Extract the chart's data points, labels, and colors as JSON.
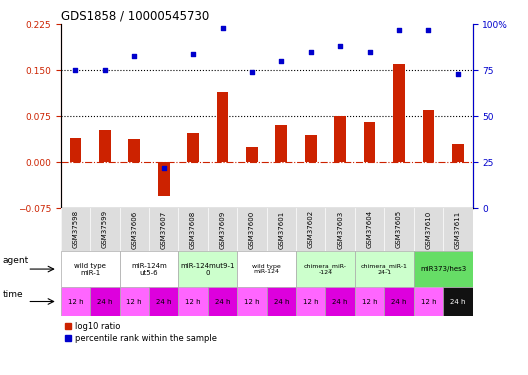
{
  "title": "GDS1858 / 10000545730",
  "samples": [
    "GSM37598",
    "GSM37599",
    "GSM37606",
    "GSM37607",
    "GSM37608",
    "GSM37609",
    "GSM37600",
    "GSM37601",
    "GSM37602",
    "GSM37603",
    "GSM37604",
    "GSM37605",
    "GSM37610",
    "GSM37611"
  ],
  "log10_ratio": [
    0.04,
    0.052,
    0.038,
    -0.055,
    0.048,
    0.115,
    0.025,
    0.06,
    0.045,
    0.075,
    0.065,
    0.16,
    0.085,
    0.03
  ],
  "percentile_rank": [
    75,
    75,
    83,
    22,
    84,
    98,
    74,
    80,
    85,
    88,
    85,
    97,
    97,
    73
  ],
  "ylim_left": [
    -0.075,
    0.225
  ],
  "ylim_right": [
    0,
    100
  ],
  "yticks_left": [
    -0.075,
    0.0,
    0.075,
    0.15,
    0.225
  ],
  "yticks_right": [
    0,
    25,
    50,
    75,
    100
  ],
  "hlines": [
    0.075,
    0.15
  ],
  "bar_color": "#cc2200",
  "dot_color": "#0000cc",
  "zero_line_color": "#cc2200",
  "agent_groups": [
    {
      "label": "wild type\nmiR-1",
      "span": [
        0,
        2
      ],
      "color": "#ffffff"
    },
    {
      "label": "miR-124m\nut5-6",
      "span": [
        2,
        4
      ],
      "color": "#ffffff"
    },
    {
      "label": "miR-124mut9-1\n0",
      "span": [
        4,
        6
      ],
      "color": "#ccffcc"
    },
    {
      "label": "wild type\nmiR-124",
      "span": [
        6,
        8
      ],
      "color": "#ffffff"
    },
    {
      "label": "chimera_miR-\n-124",
      "span": [
        8,
        10
      ],
      "color": "#ccffcc"
    },
    {
      "label": "chimera_miR-1\n24-1",
      "span": [
        10,
        12
      ],
      "color": "#ccffcc"
    },
    {
      "label": "miR373/hes3",
      "span": [
        12,
        14
      ],
      "color": "#66dd66"
    }
  ],
  "time_labels": [
    "12 h",
    "24 h",
    "12 h",
    "24 h",
    "12 h",
    "24 h",
    "12 h",
    "24 h",
    "12 h",
    "24 h",
    "12 h",
    "24 h",
    "12 h",
    "24 h"
  ],
  "time_colors": [
    "#ff66ff",
    "#dd00dd",
    "#ff66ff",
    "#dd00dd",
    "#ff66ff",
    "#dd00dd",
    "#ff66ff",
    "#dd00dd",
    "#ff66ff",
    "#dd00dd",
    "#ff66ff",
    "#dd00dd",
    "#ff66ff",
    "#111111"
  ],
  "legend_bar_label": "log10 ratio",
  "legend_dot_label": "percentile rank within the sample",
  "bg_color": "#ffffff",
  "tick_color_left": "#cc2200",
  "tick_color_right": "#0000cc"
}
